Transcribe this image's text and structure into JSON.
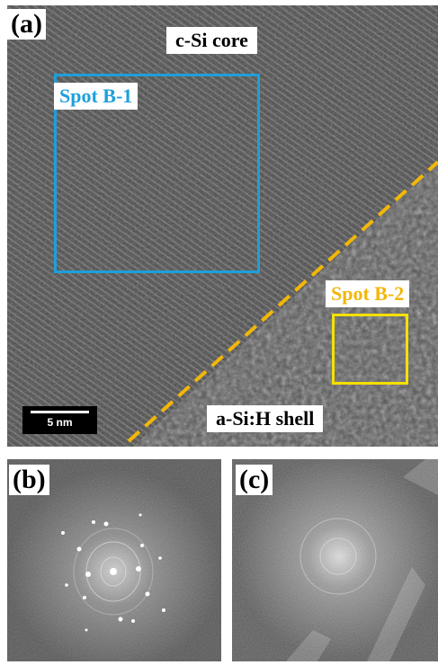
{
  "panels": {
    "a": {
      "label": "(a)",
      "core_label": "c-Si core",
      "shell_label": "a-Si:H shell",
      "spot1_label": "Spot B-1",
      "spot2_label": "Spot B-2",
      "scale_bar": "5 nm"
    },
    "b": {
      "label": "(b)"
    },
    "c": {
      "label": "(c)"
    }
  },
  "colors": {
    "spot1": "#1e9fdb",
    "spot2": "#f5e000",
    "interface": "#f2b708"
  }
}
